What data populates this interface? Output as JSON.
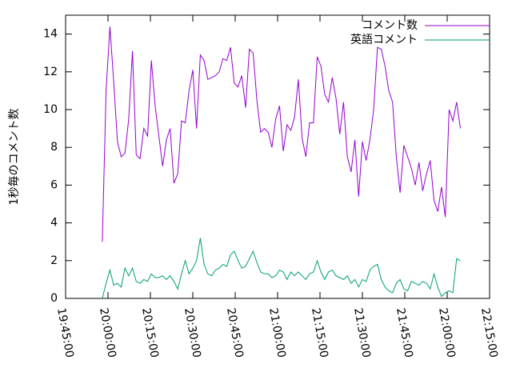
{
  "chart_data": {
    "type": "line",
    "ylabel": "1秒毎のコメント数",
    "x": [
      "19:58:00",
      "19:59:20",
      "20:00:40",
      "20:02:00",
      "20:03:20",
      "20:04:40",
      "20:06:00",
      "20:07:20",
      "20:08:40",
      "20:10:00",
      "20:11:20",
      "20:12:40",
      "20:14:00",
      "20:15:20",
      "20:16:40",
      "20:18:00",
      "20:19:20",
      "20:20:40",
      "20:22:00",
      "20:23:20",
      "20:24:40",
      "20:26:00",
      "20:27:20",
      "20:28:40",
      "20:30:00",
      "20:31:20",
      "20:32:40",
      "20:34:00",
      "20:35:20",
      "20:36:40",
      "20:38:00",
      "20:39:20",
      "20:40:40",
      "20:42:00",
      "20:43:20",
      "20:44:40",
      "20:46:00",
      "20:47:20",
      "20:48:40",
      "20:50:00",
      "20:51:20",
      "20:52:40",
      "20:54:00",
      "20:55:20",
      "20:56:40",
      "20:58:00",
      "20:59:20",
      "21:00:40",
      "21:02:00",
      "21:03:20",
      "21:04:40",
      "21:06:00",
      "21:07:20",
      "21:08:40",
      "21:10:00",
      "21:11:20",
      "21:12:40",
      "21:14:00",
      "21:15:20",
      "21:16:40",
      "21:18:00",
      "21:19:20",
      "21:20:40",
      "21:22:00",
      "21:23:20",
      "21:24:40",
      "21:26:00",
      "21:27:20",
      "21:28:40",
      "21:30:00",
      "21:31:20",
      "21:32:40",
      "21:34:00",
      "21:35:20",
      "21:36:40",
      "21:38:00",
      "21:39:20",
      "21:40:40",
      "21:42:00",
      "21:43:20",
      "21:44:40",
      "21:46:00",
      "21:47:20",
      "21:48:40",
      "21:50:00",
      "21:51:20",
      "21:52:40",
      "21:54:00",
      "21:55:20",
      "21:56:40",
      "21:58:00",
      "21:59:20",
      "22:00:40",
      "22:02:00",
      "22:03:20",
      "22:04:40"
    ],
    "series": [
      {
        "name": "コメント数",
        "color": "#9400d3",
        "values": [
          3.0,
          11,
          14.4,
          11.5,
          8.3,
          7.5,
          7.7,
          9.5,
          13.1,
          7.6,
          7.4,
          9.0,
          8.6,
          12.6,
          10.2,
          8.6,
          7.0,
          8.4,
          9.0,
          6.1,
          6.6,
          9.4,
          9.3,
          11.0,
          12.1,
          9.0,
          12.9,
          12.6,
          11.6,
          11.7,
          11.8,
          12.0,
          12.7,
          12.6,
          13.3,
          11.4,
          11.2,
          11.8,
          10.1,
          13.2,
          13.0,
          10.5,
          8.8,
          9.0,
          8.8,
          8.0,
          9.5,
          10.2,
          7.8,
          9.2,
          8.9,
          9.6,
          11.6,
          8.5,
          7.5,
          9.3,
          9.3,
          12.8,
          12.3,
          10.8,
          10.4,
          11.7,
          10.6,
          8.7,
          10.4,
          7.5,
          6.7,
          8.4,
          5.4,
          8.3,
          7.3,
          8.4,
          10.0,
          13.3,
          13.2,
          12.3,
          11.0,
          10.4,
          7.5,
          5.6,
          8.1,
          7.5,
          6.9,
          6.0,
          7.2,
          5.7,
          6.6,
          7.3,
          5.2,
          4.6,
          5.9,
          4.3,
          10.0,
          9.4,
          10.4,
          9.0
        ]
      },
      {
        "name": "英語コメント",
        "color": "#009e73",
        "values": [
          0,
          0.8,
          1.5,
          0.7,
          0.8,
          0.6,
          1.6,
          1.2,
          1.6,
          0.9,
          0.8,
          1.0,
          0.9,
          1.3,
          1.1,
          1.1,
          1.2,
          1.0,
          1.2,
          0.9,
          0.5,
          1.3,
          2.0,
          1.3,
          1.6,
          2.0,
          3.2,
          1.8,
          1.3,
          1.2,
          1.5,
          1.6,
          1.8,
          1.7,
          2.3,
          2.5,
          2.0,
          1.6,
          1.7,
          2.1,
          2.5,
          1.9,
          1.4,
          1.3,
          1.3,
          1.1,
          1.2,
          1.5,
          1.4,
          1.0,
          1.4,
          1.2,
          1.4,
          1.2,
          1.0,
          1.3,
          1.4,
          2.0,
          1.4,
          1.0,
          1.4,
          1.5,
          1.2,
          1.1,
          1.0,
          1.2,
          0.8,
          1.0,
          0.6,
          1.0,
          0.9,
          1.5,
          1.7,
          1.8,
          1.0,
          0.6,
          0.4,
          0.3,
          0.8,
          1.0,
          0.5,
          0.4,
          0.9,
          0.8,
          0.7,
          0.9,
          0.8,
          0.5,
          1.3,
          0.6,
          0.1,
          0.3,
          0.4,
          0.3,
          2.1,
          2.0
        ]
      }
    ],
    "xlim": [
      "19:45:00",
      "22:15:00"
    ],
    "xticks": [
      "19:45:00",
      "20:00:00",
      "20:15:00",
      "20:30:00",
      "20:45:00",
      "21:00:00",
      "21:15:00",
      "21:30:00",
      "21:45:00",
      "22:00:00",
      "22:15:00"
    ],
    "ylim": [
      0,
      15
    ],
    "yticks": [
      0,
      2,
      4,
      6,
      8,
      10,
      12,
      14
    ],
    "legend": "top-right"
  }
}
